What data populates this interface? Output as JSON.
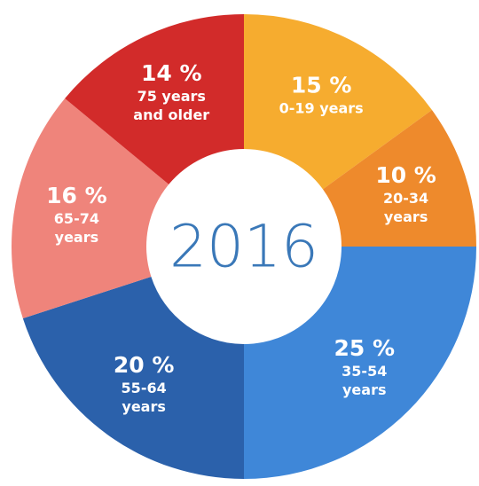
{
  "chart_data": {
    "type": "donut",
    "center_label": "2016",
    "categories": [
      "0-19 years",
      "20-34 years",
      "35-54 years",
      "55-64 years",
      "65-74 years",
      "75 years and older"
    ],
    "values": [
      15,
      10,
      25,
      20,
      16,
      14
    ],
    "value_labels": [
      "15 %",
      "10 %",
      "25 %",
      "20 %",
      "16 %",
      "14 %"
    ],
    "colors": [
      "#f6ac2f",
      "#ee8a2c",
      "#3f87d8",
      "#2b61ab",
      "#ef847b",
      "#d22b2a"
    ]
  }
}
